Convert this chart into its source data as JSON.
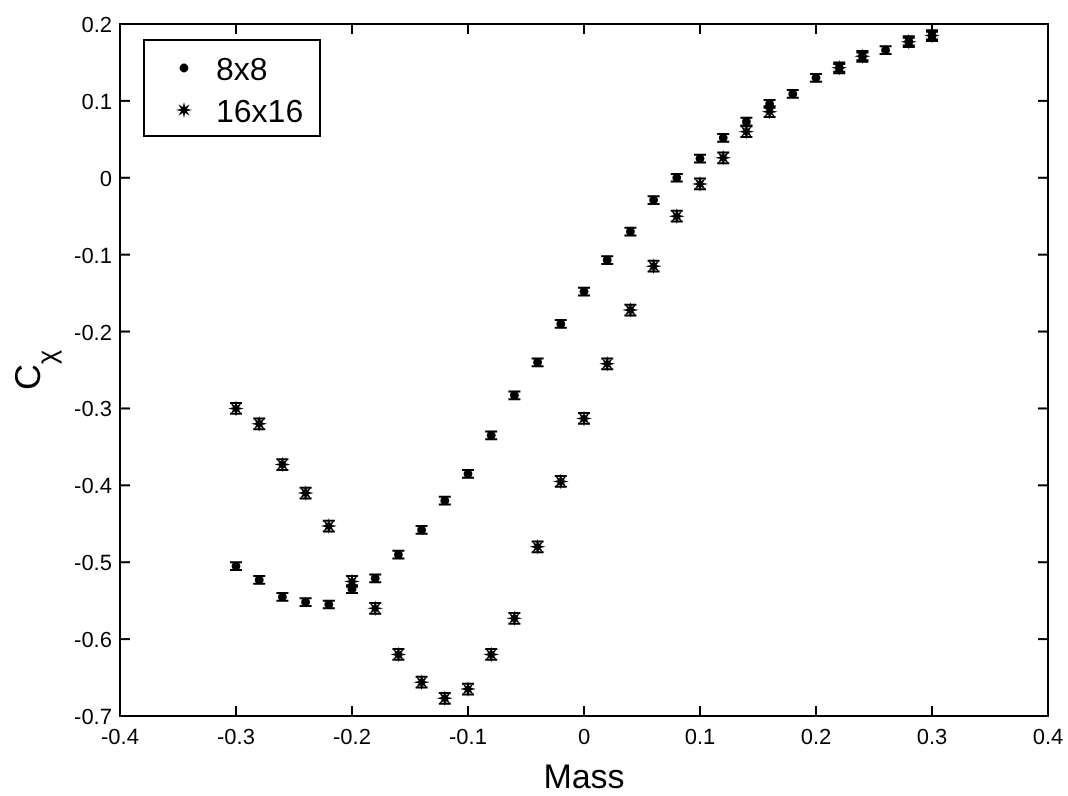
{
  "chart_data": {
    "type": "scatter",
    "xlabel": "Mass",
    "ylabel": "C$_{χ}$",
    "xlim": [
      -0.4,
      0.4
    ],
    "ylim": [
      -0.7,
      0.2
    ],
    "xticks": [
      -0.4,
      -0.3,
      -0.2,
      -0.1,
      0,
      0.1,
      0.2,
      0.3,
      0.4
    ],
    "yticks": [
      -0.7,
      -0.6,
      -0.5,
      -0.4,
      -0.3,
      -0.2,
      -0.1,
      0,
      0.1,
      0.2
    ],
    "grid": false,
    "legend": "top left",
    "x": [
      -0.3,
      -0.28,
      -0.26,
      -0.24,
      -0.22,
      -0.2,
      -0.18,
      -0.16,
      -0.14,
      -0.12,
      -0.1,
      -0.08,
      -0.06,
      -0.04,
      -0.02,
      0,
      0.02,
      0.04,
      0.06,
      0.08,
      0.1,
      0.12,
      0.14,
      0.16,
      0.18,
      0.2,
      0.22,
      0.24,
      0.26,
      0.28,
      0.3
    ],
    "series": [
      {
        "name": "8x8",
        "color": "#000000",
        "marker": "circle",
        "values": [
          -0.505,
          -0.523,
          -0.545,
          -0.552,
          -0.555,
          -0.535,
          -0.521,
          -0.49,
          -0.458,
          -0.42,
          -0.385,
          -0.335,
          -0.283,
          -0.24,
          -0.19,
          -0.148,
          -0.107,
          -0.07,
          -0.029,
          0.0,
          0.025,
          0.052,
          0.073,
          0.096,
          0.109,
          0.13,
          0.143,
          0.158,
          0.166,
          0.177,
          0.185
        ],
        "errors": [
          0.005,
          0.005,
          0.005,
          0.005,
          0.005,
          0.005,
          0.005,
          0.005,
          0.005,
          0.005,
          0.005,
          0.005,
          0.005,
          0.005,
          0.005,
          0.005,
          0.005,
          0.005,
          0.005,
          0.005,
          0.005,
          0.005,
          0.005,
          0.005,
          0.005,
          0.005,
          0.005,
          0.005,
          0.005,
          0.005,
          0.005
        ]
      },
      {
        "name": "16x16",
        "color": "#000000",
        "marker": "star",
        "values": [
          -0.3,
          -0.32,
          -0.373,
          -0.41,
          -0.453,
          -0.525,
          -0.56,
          -0.62,
          -0.656,
          -0.677,
          -0.665,
          -0.62,
          -0.573,
          -0.48,
          -0.395,
          -0.313,
          -0.242,
          -0.172,
          -0.115,
          -0.05,
          -0.008,
          0.026,
          0.06,
          0.086,
          null,
          null,
          0.143,
          0.158,
          null,
          0.177,
          0.185
        ],
        "errors": [
          0.007,
          0.007,
          0.007,
          0.007,
          0.007,
          0.007,
          0.007,
          0.007,
          0.007,
          0.007,
          0.007,
          0.007,
          0.007,
          0.007,
          0.007,
          0.007,
          0.007,
          0.007,
          0.007,
          0.007,
          0.007,
          0.007,
          0.007,
          0.007,
          null,
          null,
          0.007,
          0.007,
          null,
          0.007,
          0.007
        ]
      }
    ]
  }
}
